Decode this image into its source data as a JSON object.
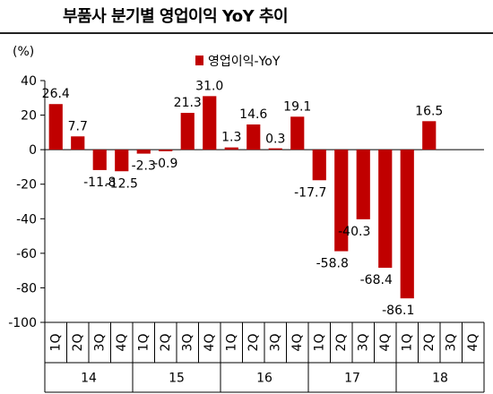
{
  "chart_data": {
    "type": "bar",
    "title": "부품사 분기별 영업이익 YoY 추이",
    "unit_label": "(%)",
    "series": [
      {
        "name": "영업이익-YoY",
        "color": "#c00000",
        "values": [
          26.4,
          7.7,
          -11.8,
          -12.5,
          -2.3,
          -0.9,
          21.3,
          31.0,
          1.3,
          14.6,
          0.3,
          19.1,
          -17.7,
          -58.8,
          -40.3,
          -68.4,
          -86.1,
          16.5,
          null,
          null
        ]
      }
    ],
    "data_labels": [
      "26.4",
      "7.7",
      "-11.8",
      "-12.5",
      "-2.3",
      "-0.9",
      "21.3",
      "31.0",
      "1.3",
      "14.6",
      "0.3",
      "19.1",
      "-17.7",
      "-58.8",
      "-40.3",
      "-68.4",
      "-86.1",
      "16.5",
      "",
      ""
    ],
    "quarters": [
      "1Q",
      "2Q",
      "3Q",
      "4Q",
      "1Q",
      "2Q",
      "3Q",
      "4Q",
      "1Q",
      "2Q",
      "3Q",
      "4Q",
      "1Q",
      "2Q",
      "3Q",
      "4Q",
      "1Q",
      "2Q",
      "3Q",
      "4Q"
    ],
    "years": [
      "14",
      "15",
      "16",
      "17",
      "18"
    ],
    "y_ticks": [
      "40",
      "20",
      "0",
      "-20",
      "-40",
      "-60",
      "-80",
      "-100"
    ],
    "ylim": [
      -100,
      40
    ],
    "grid": false,
    "legend_position": "top-center"
  }
}
